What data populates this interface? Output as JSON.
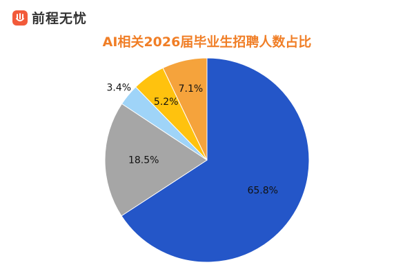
{
  "brand": {
    "name": "前程无忧",
    "logo_icon": "hand-icon",
    "logo_color": "#f25a3a"
  },
  "chart_data": {
    "type": "pie",
    "title": "AI相关2026届毕业生招聘人数占比",
    "title_color": "#f07e26",
    "start": "12 o'clock",
    "direction": "clockwise",
    "slices": [
      {
        "value": 65.8,
        "label": "65.8%",
        "color": "#2456c8"
      },
      {
        "value": 18.5,
        "label": "18.5%",
        "color": "#a6a6a6"
      },
      {
        "value": 3.4,
        "label": "3.4%",
        "color": "#9fd4f8"
      },
      {
        "value": 5.2,
        "label": "5.2%",
        "color": "#ffc20e"
      },
      {
        "value": 7.1,
        "label": "7.1%",
        "color": "#f5a33c"
      }
    ]
  }
}
